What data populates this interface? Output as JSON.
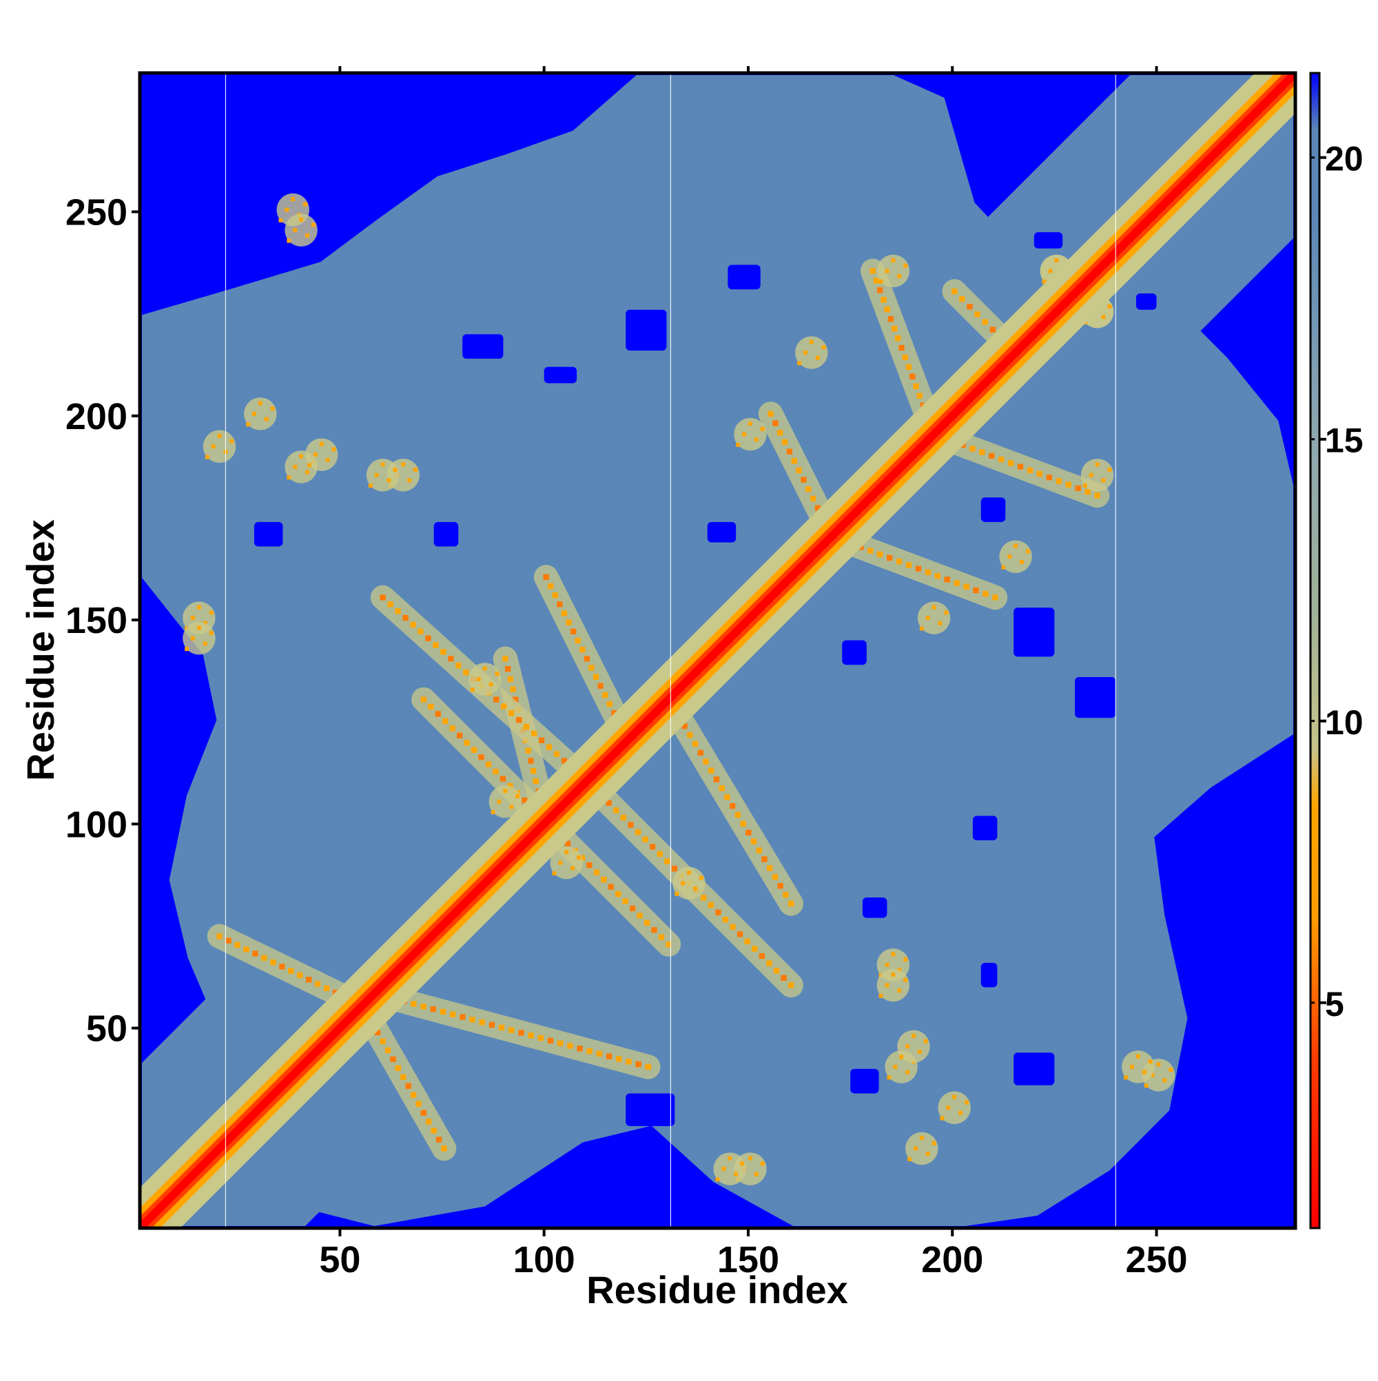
{
  "chart_data": {
    "type": "heatmap",
    "title": "",
    "xlabel": "Residue index",
    "ylabel": "Residue index",
    "n_residues": 283,
    "xlim": [
      1,
      283
    ],
    "ylim": [
      1,
      283
    ],
    "x_ticks": [
      50,
      100,
      150,
      200,
      250
    ],
    "y_ticks": [
      50,
      100,
      150,
      200,
      250
    ],
    "top_tick_marks": [
      50,
      100,
      150,
      200,
      250
    ],
    "domain_boundaries": [
      22,
      131,
      240
    ],
    "colorbar": {
      "ticks": [
        5,
        10,
        15,
        20
      ],
      "range": [
        1,
        21.5
      ],
      "stops": [
        {
          "value": 1.0,
          "color": "#ff0000"
        },
        {
          "value": 4.0,
          "color": "#ff3c00"
        },
        {
          "value": 6.5,
          "color": "#ff9c00"
        },
        {
          "value": 8.5,
          "color": "#ffa500"
        },
        {
          "value": 9.5,
          "color": "#c7c48a"
        },
        {
          "value": 12.0,
          "color": "#9fb29a"
        },
        {
          "value": 15.0,
          "color": "#8fa8b0"
        },
        {
          "value": 19.0,
          "color": "#5a87b8"
        },
        {
          "value": 20.5,
          "color": "#5a87b8"
        },
        {
          "value": 21.5,
          "color": "#0000ff"
        }
      ]
    },
    "colors": {
      "far": "#0000ff",
      "mid": "#5a87b8",
      "near": "#ff0000",
      "contact": "#ffa500",
      "edge": "#c9c98a"
    },
    "contact_arms": [
      {
        "from": [
          55,
          55
        ],
        "to": [
          20,
          72
        ]
      },
      {
        "from": [
          55,
          55
        ],
        "to": [
          75,
          20
        ]
      },
      {
        "from": [
          58,
          58
        ],
        "to": [
          125,
          40
        ]
      },
      {
        "from": [
          100,
          100
        ],
        "to": [
          70,
          130
        ]
      },
      {
        "from": [
          100,
          100
        ],
        "to": [
          130,
          70
        ]
      },
      {
        "from": [
          100,
          100
        ],
        "to": [
          90,
          140
        ]
      },
      {
        "from": [
          110,
          110
        ],
        "to": [
          60,
          155
        ]
      },
      {
        "from": [
          110,
          110
        ],
        "to": [
          160,
          60
        ]
      },
      {
        "from": [
          120,
          120
        ],
        "to": [
          100,
          160
        ]
      },
      {
        "from": [
          130,
          130
        ],
        "to": [
          160,
          80
        ]
      },
      {
        "from": [
          170,
          170
        ],
        "to": [
          155,
          200
        ]
      },
      {
        "from": [
          170,
          170
        ],
        "to": [
          210,
          155
        ]
      },
      {
        "from": [
          195,
          195
        ],
        "to": [
          180,
          235
        ]
      },
      {
        "from": [
          195,
          195
        ],
        "to": [
          235,
          180
        ]
      },
      {
        "from": [
          215,
          215
        ],
        "to": [
          200,
          230
        ]
      }
    ],
    "contact_blobs": [
      [
        38,
        250
      ],
      [
        20,
        192
      ],
      [
        40,
        187
      ],
      [
        65,
        185
      ],
      [
        15,
        150
      ],
      [
        245,
        40
      ],
      [
        235,
        225
      ],
      [
        225,
        235
      ],
      [
        185,
        235
      ],
      [
        165,
        215
      ],
      [
        150,
        195
      ],
      [
        145,
        15
      ],
      [
        185,
        60
      ],
      [
        200,
        30
      ],
      [
        190,
        45
      ],
      [
        135,
        85
      ],
      [
        105,
        90
      ]
    ],
    "far_regions": [
      [
        29,
        167,
        7,
        6
      ],
      [
        73,
        167,
        6,
        6
      ],
      [
        140,
        168,
        7,
        5
      ],
      [
        100,
        207,
        8,
        4
      ],
      [
        60,
        59,
        7,
        4
      ],
      [
        37,
        38,
        5,
        5
      ],
      [
        178,
        76,
        6,
        5
      ],
      [
        173,
        138,
        6,
        6
      ],
      [
        175,
        33,
        7,
        6
      ],
      [
        207,
        173,
        6,
        6
      ],
      [
        220,
        240,
        7,
        4
      ],
      [
        245,
        225,
        5,
        4
      ],
      [
        207,
        59,
        4,
        6
      ],
      [
        80,
        213,
        10,
        6
      ],
      [
        120,
        215,
        10,
        10
      ],
      [
        145,
        230,
        8,
        6
      ],
      [
        215,
        140,
        10,
        12
      ],
      [
        205,
        95,
        6,
        6
      ],
      [
        230,
        125,
        10,
        10
      ],
      [
        215,
        35,
        10,
        8
      ],
      [
        120,
        25,
        12,
        8
      ]
    ]
  }
}
